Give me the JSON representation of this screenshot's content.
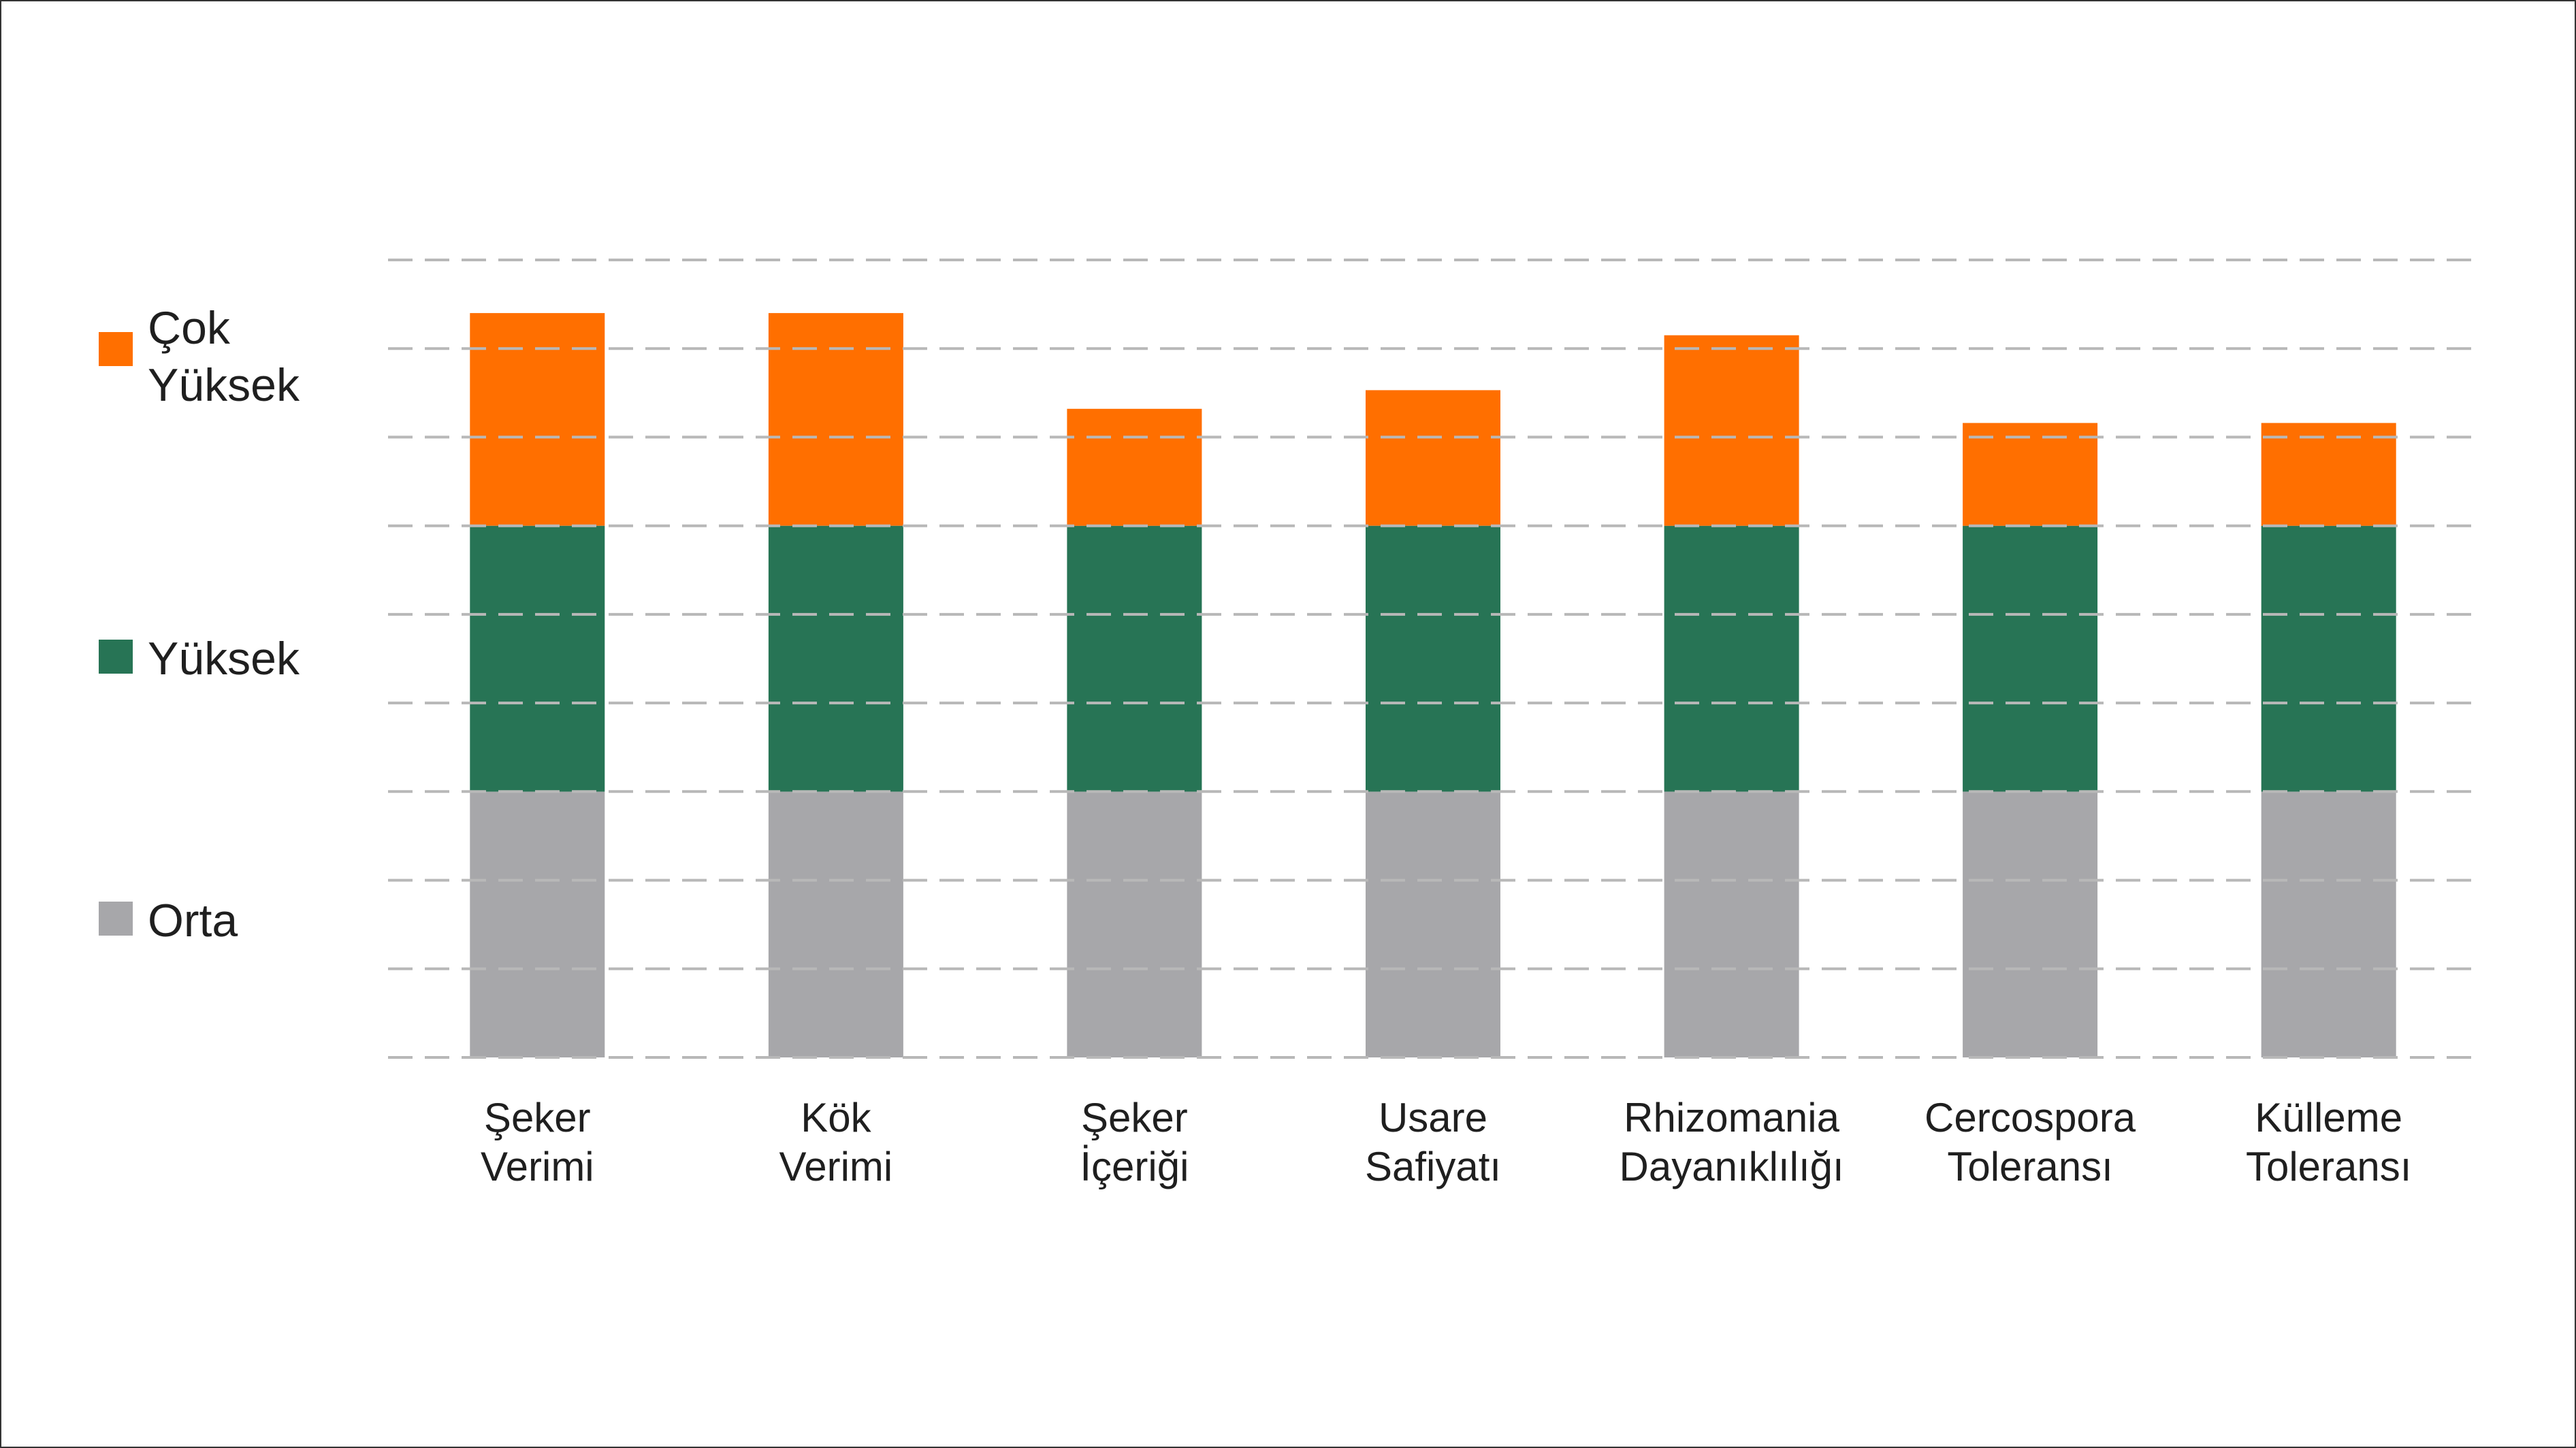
{
  "colors": {
    "orta": "#a7a7aa",
    "yuksek": "#277455",
    "cok_yuksek": "#ff6f00",
    "grid": "#b8b8b8",
    "text": "#1f1f1f",
    "frame": "#333333"
  },
  "legend": [
    {
      "key": "cok_yuksek",
      "lines": [
        "Çok",
        "Yüksek"
      ]
    },
    {
      "key": "yuksek",
      "lines": [
        "Yüksek"
      ]
    },
    {
      "key": "orta",
      "lines": [
        "Orta"
      ]
    }
  ],
  "chart_data": {
    "type": "bar",
    "stacked": true,
    "categories": [
      [
        "Şeker",
        "Verimi"
      ],
      [
        "Kök",
        "Verimi"
      ],
      [
        "Şeker",
        "İçeriği"
      ],
      [
        "Usare",
        "Safiyatı"
      ],
      [
        "Rhizomania",
        "Dayanıklılığı"
      ],
      [
        "Cercospora",
        "Toleransı"
      ],
      [
        "Külleme",
        "Toleransı"
      ]
    ],
    "series": [
      {
        "name": "Orta",
        "color_key": "orta",
        "values": [
          3,
          3,
          3,
          3,
          3,
          3,
          3
        ]
      },
      {
        "name": "Yüksek",
        "color_key": "yuksek",
        "values": [
          3,
          3,
          3,
          3,
          3,
          3,
          3
        ]
      },
      {
        "name": "Çok Yüksek",
        "color_key": "cok_yuksek",
        "values": [
          2.4,
          2.4,
          1.32,
          1.53,
          2.15,
          1.16,
          1.16
        ]
      }
    ],
    "ylim": [
      0,
      9
    ],
    "grid": true,
    "grid_style": "dashed",
    "grid_lines": 10,
    "legend_position": "left",
    "title": "",
    "xlabel": "",
    "ylabel": ""
  }
}
